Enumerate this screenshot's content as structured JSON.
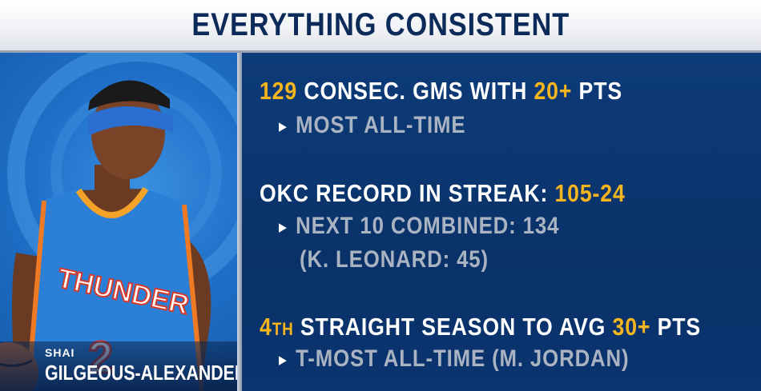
{
  "header": {
    "title": "EVERYTHING CONSISTENT"
  },
  "player": {
    "first_name": "SHAI",
    "last_name": "GILGEOUS-ALEXANDER",
    "jersey_text": "THUNDER",
    "jersey_number": "2"
  },
  "stat1": {
    "num": "129",
    "text1": " CONSEC. GMS WITH ",
    "num2": "20+",
    "text2": " PTS",
    "sub": "MOST ALL-TIME"
  },
  "stat2": {
    "text1": "OKC RECORD IN STREAK: ",
    "num": "105-24",
    "sub1": "NEXT 10 COMBINED: 134",
    "sub2": "(K. LEONARD: 45)"
  },
  "stat3": {
    "num": "4",
    "ordinal": "TH",
    "text1": " STRAIGHT SEASON TO AVG ",
    "num2": "30+",
    "text2": " PTS",
    "sub": "T-MOST ALL-TIME (M. JORDAN)"
  },
  "colors": {
    "accent": "#f5b51d",
    "panel": "#0a3269",
    "photo_bg": "#1f6fc8"
  }
}
